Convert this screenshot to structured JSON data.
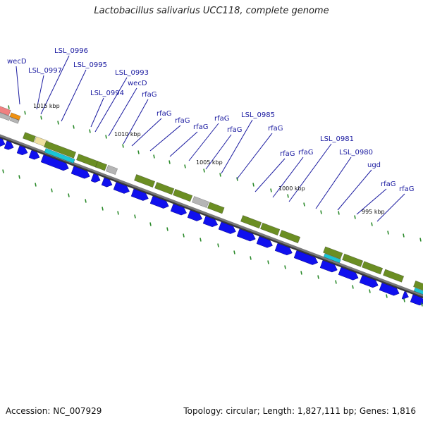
{
  "title": "Lactobacillus salivarius UCC118, complete genome",
  "footer": {
    "accession": "Accession: NC_007929",
    "topology": "Topology: circular; Length: 1,827,111 bp; Genes: 1,816"
  },
  "colors": {
    "backbone": "#7a7a7a",
    "cds": "#1010ee",
    "olive": "#6b8e23",
    "cyan": "#19c6d6",
    "gray": "#b5b5b5",
    "salmon": "#f08080",
    "orange": "#f09010",
    "tan": "#efe0a0",
    "label": "#1a1aa0",
    "tick": "#2a8a2a"
  },
  "scale_labels": [
    "1015 kbp",
    "1010 kbp",
    "1005 kbp",
    "1000 kbp",
    "995 kbp"
  ],
  "gene_labels": [
    "wecD",
    "LSL_0996",
    "LSL_0997",
    "LSL_0995",
    "LSL_0993",
    "wecD",
    "LSL_0994",
    "rfaG",
    "rfaG",
    "rfaG",
    "rfaG",
    "rfaG",
    "rfaG",
    "LSL_0985",
    "rfaG",
    "rfaG",
    "rfaG",
    "LSL_0981",
    "LSL_0980",
    "ugd",
    "rfaG",
    "rfaG"
  ]
}
